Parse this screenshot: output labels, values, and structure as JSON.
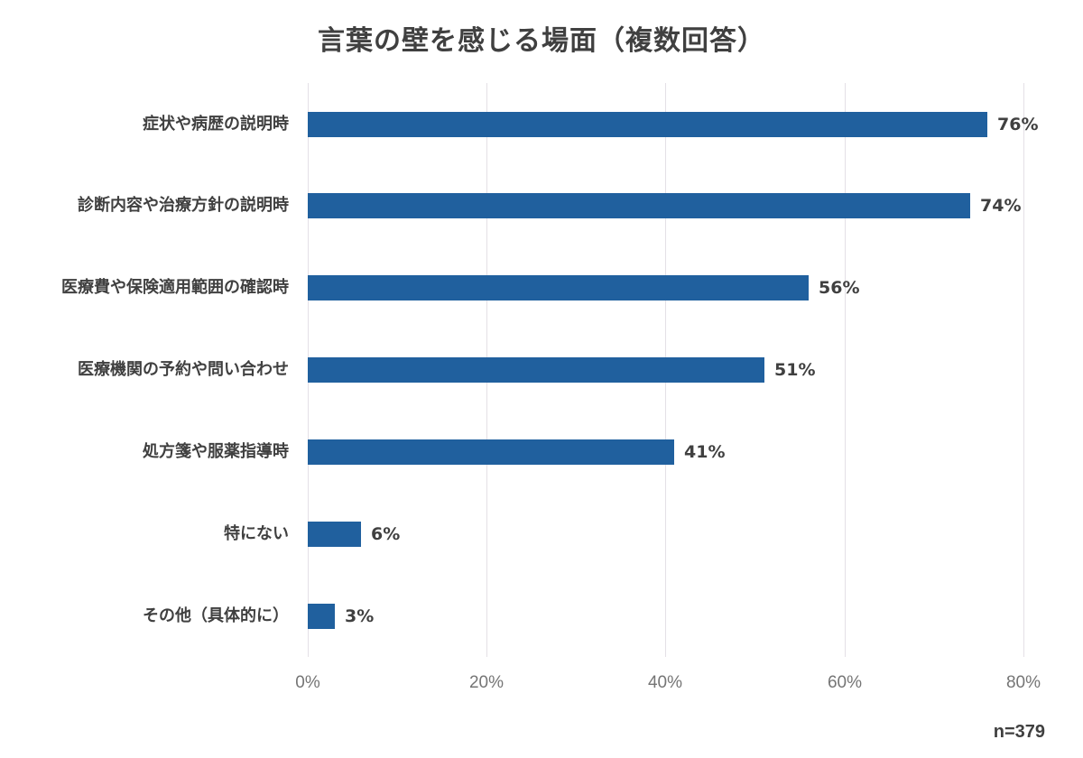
{
  "title": "言葉の壁を感じる場面（複数回答）",
  "sample_size": "n=379",
  "colors": {
    "bar": "#20609e",
    "grid": "#e4e0e6",
    "text": "#404040",
    "tick": "#757575"
  },
  "x_ticks": [
    "0%",
    "20%",
    "40%",
    "60%",
    "80%"
  ],
  "bars": [
    {
      "label": "症状や病歴の説明時",
      "value": 76,
      "value_label": "76%"
    },
    {
      "label": "診断内容や治療方針の説明時",
      "value": 74,
      "value_label": "74%"
    },
    {
      "label": "医療費や保険適用範囲の確認時",
      "value": 56,
      "value_label": "56%"
    },
    {
      "label": "医療機関の予約や問い合わせ",
      "value": 51,
      "value_label": "51%"
    },
    {
      "label": "処方箋や服薬指導時",
      "value": 41,
      "value_label": "41%"
    },
    {
      "label": "特にない",
      "value": 6,
      "value_label": "6%"
    },
    {
      "label": "その他（具体的に）",
      "value": 3,
      "value_label": "3%"
    }
  ],
  "chart_data": {
    "type": "bar",
    "orientation": "horizontal",
    "title": "言葉の壁を感じる場面（複数回答）",
    "categories": [
      "症状や病歴の説明時",
      "診断内容や治療方針の説明時",
      "医療費や保険適用範囲の確認時",
      "医療機関の予約や問い合わせ",
      "処方箋や服薬指導時",
      "特にない",
      "その他（具体的に）"
    ],
    "values": [
      76,
      74,
      56,
      51,
      41,
      6,
      3
    ],
    "unit": "%",
    "xlabel": "",
    "ylabel": "",
    "xlim": [
      0,
      80
    ],
    "x_ticks": [
      "0%",
      "20%",
      "40%",
      "60%",
      "80%"
    ],
    "grid": "vertical",
    "legend": "none",
    "annotation": "n=379"
  }
}
